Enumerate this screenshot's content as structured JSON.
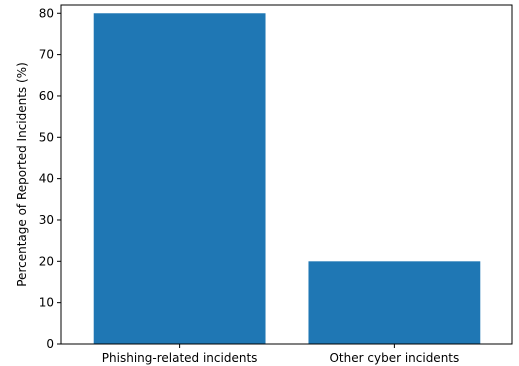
{
  "chart_data": {
    "type": "bar",
    "title": "",
    "xlabel": "",
    "ylabel": "Percentage of Reported Incidents (%)",
    "categories": [
      "Phishing-related incidents",
      "Other cyber incidents"
    ],
    "values": [
      80,
      20
    ],
    "ylim": [
      0,
      82
    ],
    "yticks": [
      0,
      10,
      20,
      30,
      40,
      50,
      60,
      70,
      80
    ],
    "bar_color": "#1f77b4",
    "grid": false,
    "legend": "none"
  }
}
